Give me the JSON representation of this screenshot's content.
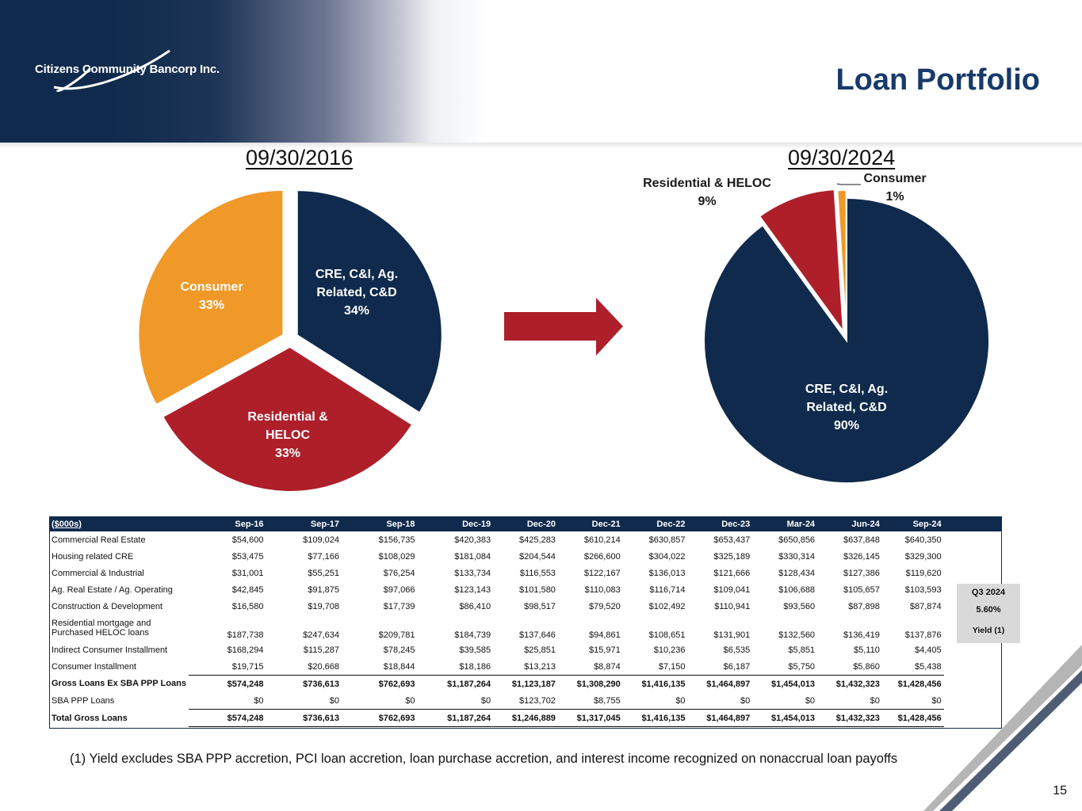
{
  "company": "Citizens Community Bancorp Inc.",
  "title": "Loan Portfolio",
  "colors": {
    "navy": "#0f2a4c",
    "red": "#ae1f2a",
    "orange": "#f09928",
    "title_blue": "#173a6b"
  },
  "chart_data": [
    {
      "type": "pie",
      "title": "09/30/2016",
      "slices": [
        {
          "label_lines": [
            "CRE, C&I, Ag.",
            "Related, C&D"
          ],
          "value": 34,
          "pct": "34%"
        },
        {
          "label_lines": [
            "Residential &",
            "HELOC"
          ],
          "value": 33,
          "pct": "33%"
        },
        {
          "label_lines": [
            "Consumer"
          ],
          "value": 33,
          "pct": "33%"
        }
      ]
    },
    {
      "type": "pie",
      "title": "09/30/2024",
      "slices": [
        {
          "label_lines": [
            "CRE, C&I, Ag.",
            "Related, C&D"
          ],
          "value": 90,
          "pct": "90%"
        },
        {
          "label_lines": [
            "Residential & HELOC"
          ],
          "value": 9,
          "pct": "9%"
        },
        {
          "label_lines": [
            "Consumer"
          ],
          "value": 1,
          "pct": "1%"
        }
      ]
    }
  ],
  "table": {
    "header_label": "($000s)",
    "columns": [
      "Sep-16",
      "Sep-17",
      "Sep-18",
      "Dec-19",
      "Dec-20",
      "Dec-21",
      "Dec-22",
      "Dec-23",
      "Mar-24",
      "Jun-24",
      "Sep-24"
    ],
    "rows": [
      {
        "label": "Commercial Real Estate",
        "values": [
          "$54,600",
          "$109,024",
          "$156,735",
          "$420,383",
          "$425,283",
          "$610,214",
          "$630,857",
          "$653,437",
          "$650,856",
          "$637,848",
          "$640,350"
        ]
      },
      {
        "label": "Housing related CRE",
        "values": [
          "$53,475",
          "$77,166",
          "$108,029",
          "$181,084",
          "$204,544",
          "$266,600",
          "$304,022",
          "$325,189",
          "$330,314",
          "$326,145",
          "$329,300"
        ]
      },
      {
        "label": "Commercial & Industrial",
        "values": [
          "$31,001",
          "$55,251",
          "$76,254",
          "$133,734",
          "$116,553",
          "$122,167",
          "$136,013",
          "$121,666",
          "$128,434",
          "$127,386",
          "$119,620"
        ]
      },
      {
        "label": "Ag. Real Estate / Ag. Operating",
        "values": [
          "$42,845",
          "$91,875",
          "$97,066",
          "$123,143",
          "$101,580",
          "$110,083",
          "$116,714",
          "$109,041",
          "$106,688",
          "$105,657",
          "$103,593"
        ]
      },
      {
        "label": "Construction & Development",
        "values": [
          "$16,580",
          "$19,708",
          "$17,739",
          "$86,410",
          "$98,517",
          "$79,520",
          "$102,492",
          "$110,941",
          "$93,560",
          "$87,898",
          "$87,874"
        ]
      },
      {
        "label": "Residential mortgage and",
        "label2": "Purchased HELOC loans",
        "values": [
          "$187,738",
          "$247,634",
          "$209,781",
          "$184,739",
          "$137,646",
          "$94,861",
          "$108,651",
          "$131,901",
          "$132,560",
          "$136,419",
          "$137,876"
        ]
      },
      {
        "label": "Indirect Consumer Installment",
        "values": [
          "$168,294",
          "$115,287",
          "$78,245",
          "$39,585",
          "$25,851",
          "$15,971",
          "$10,236",
          "$6,535",
          "$5,851",
          "$5,110",
          "$4,405"
        ]
      },
      {
        "label": "Consumer Installment",
        "values": [
          "$19,715",
          "$20,668",
          "$18,844",
          "$18,186",
          "$13,213",
          "$8,874",
          "$7,150",
          "$6,187",
          "$5,750",
          "$5,860",
          "$5,438"
        ]
      },
      {
        "label": "Gross Loans Ex SBA PPP Loans",
        "values": [
          "$574,248",
          "$736,613",
          "$762,693",
          "$1,187,264",
          "$1,123,187",
          "$1,308,290",
          "$1,416,135",
          "$1,464,897",
          "$1,454,013",
          "$1,432,323",
          "$1,428,456"
        ]
      },
      {
        "label": "SBA PPP Loans",
        "values": [
          "$0",
          "$0",
          "$0",
          "$0",
          "$123,702",
          "$8,755",
          "$0",
          "$0",
          "$0",
          "$0",
          "$0"
        ]
      },
      {
        "label": "Total Gross Loans",
        "values": [
          "$574,248",
          "$736,613",
          "$762,693",
          "$1,187,264",
          "$1,246,889",
          "$1,317,045",
          "$1,416,135",
          "$1,464,897",
          "$1,454,013",
          "$1,432,323",
          "$1,428,456"
        ]
      }
    ]
  },
  "yield_box": {
    "period": "Q3 2024",
    "value": "5.60%",
    "label": "Yield  (1)"
  },
  "footnote": "(1) Yield excludes SBA PPP accretion, PCI loan accretion, loan purchase accretion, and interest income recognized on nonaccrual loan payoffs",
  "page_number": "15"
}
